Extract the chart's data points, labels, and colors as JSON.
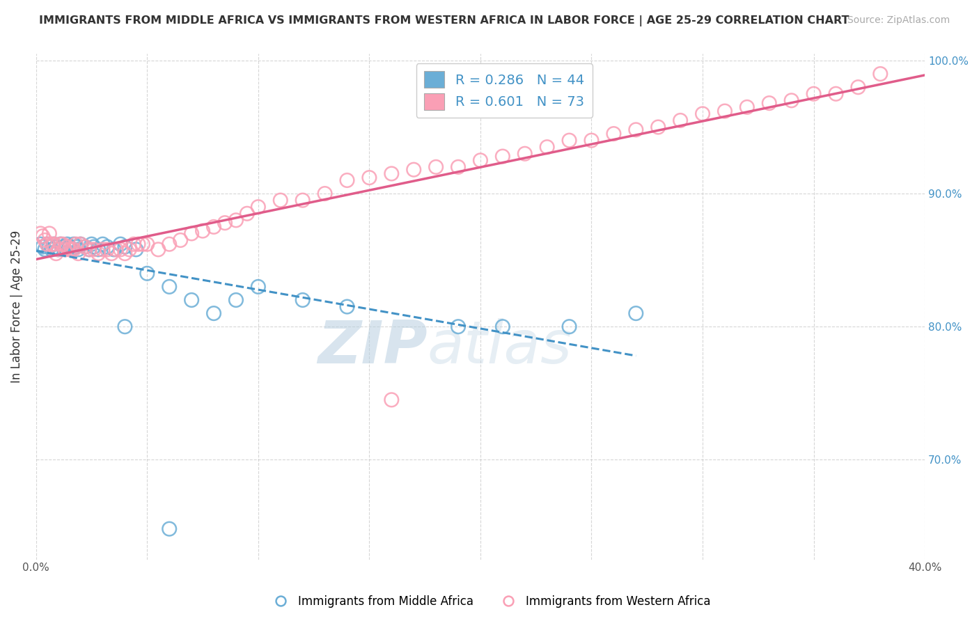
{
  "title": "IMMIGRANTS FROM MIDDLE AFRICA VS IMMIGRANTS FROM WESTERN AFRICA IN LABOR FORCE | AGE 25-29 CORRELATION CHART",
  "source": "Source: ZipAtlas.com",
  "ylabel": "In Labor Force | Age 25-29",
  "legend_label_blue": "Immigrants from Middle Africa",
  "legend_label_pink": "Immigrants from Western Africa",
  "R_blue": 0.286,
  "N_blue": 44,
  "R_pink": 0.601,
  "N_pink": 73,
  "xlim": [
    0.0,
    0.4
  ],
  "ylim": [
    0.625,
    1.005
  ],
  "xtick_positions": [
    0.0,
    0.05,
    0.1,
    0.15,
    0.2,
    0.25,
    0.3,
    0.35,
    0.4
  ],
  "xtick_labels": [
    "0.0%",
    "",
    "",
    "",
    "",
    "",
    "",
    "",
    "40.0%"
  ],
  "ytick_positions": [
    0.7,
    0.8,
    0.9,
    1.0
  ],
  "ytick_labels": [
    "70.0%",
    "80.0%",
    "90.0%",
    "100.0%"
  ],
  "color_blue": "#6baed6",
  "color_pink": "#fa9fb5",
  "color_blue_line": "#4292c6",
  "color_pink_line": "#e05c8a",
  "watermark_zip": "ZIP",
  "watermark_atlas": "atlas",
  "watermark_color_zip": "#b8cfe0",
  "watermark_color_atlas": "#b8cfe0",
  "title_fontsize": 11.5,
  "source_fontsize": 10,
  "axis_label_fontsize": 12,
  "tick_fontsize": 11,
  "legend_fontsize": 14,
  "scatter_size": 200,
  "scatter_lw": 1.8,
  "scatter_alpha": 0.85,
  "blue_x": [
    0.002,
    0.003,
    0.004,
    0.005,
    0.006,
    0.007,
    0.008,
    0.009,
    0.01,
    0.011,
    0.012,
    0.013,
    0.014,
    0.015,
    0.016,
    0.017,
    0.018,
    0.019,
    0.02,
    0.022,
    0.024,
    0.025,
    0.026,
    0.028,
    0.03,
    0.032,
    0.035,
    0.038,
    0.04,
    0.045,
    0.05,
    0.06,
    0.07,
    0.08,
    0.09,
    0.1,
    0.12,
    0.14,
    0.19,
    0.21,
    0.24,
    0.27,
    0.04,
    0.06
  ],
  "blue_y": [
    0.862,
    0.86,
    0.858,
    0.862,
    0.86,
    0.858,
    0.862,
    0.86,
    0.858,
    0.862,
    0.86,
    0.858,
    0.862,
    0.86,
    0.858,
    0.862,
    0.86,
    0.858,
    0.862,
    0.86,
    0.858,
    0.862,
    0.86,
    0.858,
    0.862,
    0.86,
    0.858,
    0.862,
    0.86,
    0.858,
    0.84,
    0.83,
    0.82,
    0.81,
    0.82,
    0.83,
    0.82,
    0.815,
    0.8,
    0.8,
    0.8,
    0.81,
    0.8,
    0.648
  ],
  "pink_x": [
    0.002,
    0.003,
    0.004,
    0.005,
    0.006,
    0.007,
    0.008,
    0.009,
    0.01,
    0.011,
    0.012,
    0.013,
    0.014,
    0.015,
    0.016,
    0.017,
    0.018,
    0.019,
    0.02,
    0.022,
    0.024,
    0.026,
    0.028,
    0.03,
    0.032,
    0.034,
    0.036,
    0.038,
    0.04,
    0.042,
    0.044,
    0.046,
    0.048,
    0.05,
    0.055,
    0.06,
    0.065,
    0.07,
    0.075,
    0.08,
    0.085,
    0.09,
    0.095,
    0.1,
    0.11,
    0.12,
    0.13,
    0.14,
    0.15,
    0.16,
    0.17,
    0.18,
    0.19,
    0.2,
    0.21,
    0.22,
    0.23,
    0.24,
    0.25,
    0.26,
    0.27,
    0.28,
    0.29,
    0.3,
    0.31,
    0.32,
    0.33,
    0.34,
    0.35,
    0.36,
    0.37,
    0.38,
    0.16
  ],
  "pink_y": [
    0.87,
    0.868,
    0.865,
    0.862,
    0.87,
    0.862,
    0.862,
    0.855,
    0.858,
    0.862,
    0.862,
    0.858,
    0.86,
    0.858,
    0.858,
    0.858,
    0.862,
    0.855,
    0.862,
    0.86,
    0.858,
    0.858,
    0.855,
    0.858,
    0.858,
    0.855,
    0.858,
    0.858,
    0.855,
    0.858,
    0.862,
    0.862,
    0.862,
    0.862,
    0.858,
    0.862,
    0.865,
    0.87,
    0.872,
    0.875,
    0.878,
    0.88,
    0.885,
    0.89,
    0.895,
    0.895,
    0.9,
    0.91,
    0.912,
    0.915,
    0.918,
    0.92,
    0.92,
    0.925,
    0.928,
    0.93,
    0.935,
    0.94,
    0.94,
    0.945,
    0.948,
    0.95,
    0.955,
    0.96,
    0.962,
    0.965,
    0.968,
    0.97,
    0.975,
    0.975,
    0.98,
    0.99,
    0.745
  ]
}
